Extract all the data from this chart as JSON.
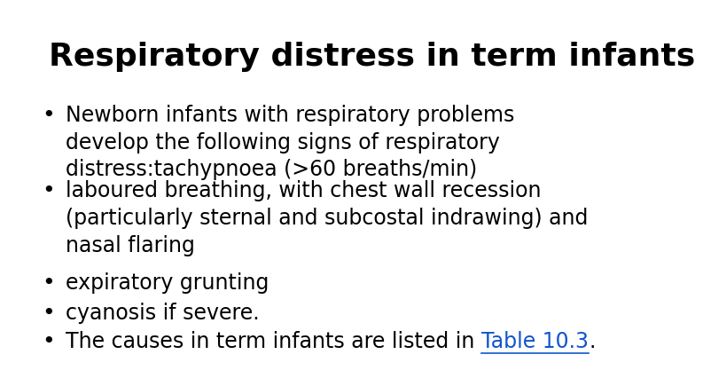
{
  "title": "Respiratory distress in term infants",
  "title_fontsize": 26,
  "title_fontweight": "bold",
  "title_color": "#000000",
  "background_color": "#ffffff",
  "bullet_color": "#000000",
  "bullet_fontsize": 17,
  "link_color": "#1155CC",
  "bullets": [
    {
      "text": "Newborn infants with respiratory problems\ndevelop the following signs of respiratory\ndistress:tachypnoea (>60 breaths/min)",
      "has_link": false
    },
    {
      "text": "laboured breathing, with chest wall recession\n(particularly sternal and subcostal indrawing) and\nnasal flaring",
      "has_link": false
    },
    {
      "text": "expiratory grunting",
      "has_link": false
    },
    {
      "text": "cyanosis if severe.",
      "has_link": false
    },
    {
      "text_before_link": "The causes in term infants are listed in ",
      "link_text": "Table 10.3",
      "text_after_link": ".",
      "has_link": true
    }
  ]
}
